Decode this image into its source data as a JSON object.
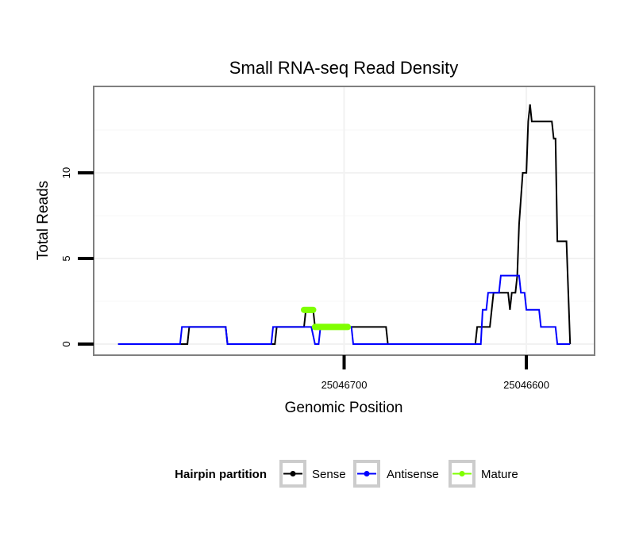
{
  "chart_data": {
    "type": "line",
    "title": "Small RNA-seq Read Density",
    "xlabel": "Genomic Position",
    "ylabel": "Total Reads",
    "x_reversed": true,
    "xlim": [
      25046837,
      25046563
    ],
    "ylim": [
      -0.6,
      15
    ],
    "x_ticks": [
      25046700,
      25046600
    ],
    "x_tick_labels": [
      "25046700",
      "25046600"
    ],
    "y_ticks": [
      0,
      5,
      10
    ],
    "y_tick_labels": [
      "0",
      "5",
      "10"
    ],
    "series": [
      {
        "name": "Sense",
        "color": "#000000",
        "points": [
          [
            25046824,
            0
          ],
          [
            25046786,
            0
          ],
          [
            25046785,
            1
          ],
          [
            25046765,
            1
          ],
          [
            25046764,
            0
          ],
          [
            25046738,
            0
          ],
          [
            25046737,
            1
          ],
          [
            25046722,
            1
          ],
          [
            25046721,
            2
          ],
          [
            25046717,
            2
          ],
          [
            25046716,
            1
          ],
          [
            25046677,
            1
          ],
          [
            25046676,
            0
          ],
          [
            25046628,
            0
          ],
          [
            25046627,
            1
          ],
          [
            25046620,
            1
          ],
          [
            25046619,
            2
          ],
          [
            25046618,
            3
          ],
          [
            25046610,
            3
          ],
          [
            25046609,
            2
          ],
          [
            25046608,
            3
          ],
          [
            25046606,
            3
          ],
          [
            25046605,
            4
          ],
          [
            25046604,
            7
          ],
          [
            25046602,
            10
          ],
          [
            25046600,
            10
          ],
          [
            25046599,
            13
          ],
          [
            25046598,
            14
          ],
          [
            25046597,
            13
          ],
          [
            25046586,
            13
          ],
          [
            25046585,
            12
          ],
          [
            25046584,
            12
          ],
          [
            25046583,
            6
          ],
          [
            25046578,
            6
          ],
          [
            25046576,
            0
          ]
        ]
      },
      {
        "name": "Antisense",
        "color": "#0000ff",
        "points": [
          [
            25046824,
            0
          ],
          [
            25046790,
            0
          ],
          [
            25046789,
            1
          ],
          [
            25046765,
            1
          ],
          [
            25046764,
            0
          ],
          [
            25046740,
            0
          ],
          [
            25046739,
            1
          ],
          [
            25046718,
            1
          ],
          [
            25046716,
            0
          ],
          [
            25046714,
            0
          ],
          [
            25046713,
            1
          ],
          [
            25046696,
            1
          ],
          [
            25046695,
            0
          ],
          [
            25046625,
            0
          ],
          [
            25046624,
            2
          ],
          [
            25046622,
            2
          ],
          [
            25046621,
            3
          ],
          [
            25046615,
            3
          ],
          [
            25046614,
            4
          ],
          [
            25046604,
            4
          ],
          [
            25046603,
            3
          ],
          [
            25046601,
            3
          ],
          [
            25046600,
            2
          ],
          [
            25046593,
            2
          ],
          [
            25046592,
            1
          ],
          [
            25046584,
            1
          ],
          [
            25046583,
            0
          ],
          [
            25046576,
            0
          ]
        ]
      },
      {
        "name": "Mature",
        "color": "#7fff00",
        "segments": [
          {
            "x_start": 25046722,
            "x_end": 25046717,
            "value": 2
          },
          {
            "x_start": 25046716,
            "x_end": 25046698,
            "value": 1
          }
        ]
      }
    ],
    "legend": {
      "title": "Hairpin partition",
      "position": "bottom",
      "entries": [
        "Sense",
        "Antisense",
        "Mature"
      ]
    }
  }
}
